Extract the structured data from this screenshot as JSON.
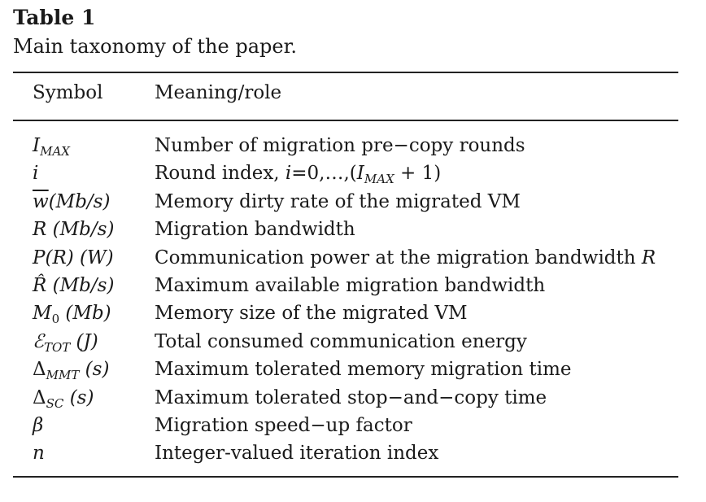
{
  "caption": {
    "label": "Table 1",
    "text": "Main taxonomy of the paper."
  },
  "header": {
    "symbol": "Symbol",
    "meaning": "Meaning/role"
  },
  "rows": [
    {
      "symbol": {
        "main": "I",
        "sub": "MAX",
        "rest": ""
      },
      "meaning": "Number of migration pre−copy rounds"
    },
    {
      "symbol": {
        "main": "i",
        "sub": "",
        "rest": ""
      },
      "meaning": {
        "pre": "Round index, ",
        "var": "i",
        "eq": "=0,…,(",
        "var2": "I",
        "sub": "MAX",
        "post": " + 1)"
      }
    },
    {
      "symbol": {
        "main": "w",
        "sub": "",
        "rest": "(Mb/s)"
      },
      "meaning": "Memory dirty rate of the migrated VM"
    },
    {
      "symbol": {
        "main": "R",
        "sub": "",
        "rest": " (Mb/s)"
      },
      "meaning": "Migration bandwidth"
    },
    {
      "symbol": {
        "main": "P(R)",
        "sub": "",
        "rest": " (W)"
      },
      "meaning": {
        "text": "Communication power at the migration bandwidth ",
        "var": "R"
      }
    },
    {
      "symbol": {
        "main": "R̂",
        "sub": "",
        "rest": " (Mb/s)"
      },
      "meaning": "Maximum available migration bandwidth"
    },
    {
      "symbol": {
        "main": "M",
        "sub": "0",
        "rest": " (Mb)"
      },
      "meaning": "Memory size of the migrated VM"
    },
    {
      "symbol": {
        "main": "ℰ",
        "sub": "TOT",
        "rest": " (J)"
      },
      "meaning": "Total consumed communication energy"
    },
    {
      "symbol": {
        "main": "Δ",
        "sub": "MMT",
        "rest": " (s)"
      },
      "meaning": "Maximum tolerated memory migration time"
    },
    {
      "symbol": {
        "main": "Δ",
        "sub": "SC",
        "rest": " (s)"
      },
      "meaning": "Maximum tolerated stop−and−copy time"
    },
    {
      "symbol": {
        "main": "β",
        "sub": "",
        "rest": ""
      },
      "meaning": "Migration speed−up factor"
    },
    {
      "symbol": {
        "main": "n",
        "sub": "",
        "rest": ""
      },
      "meaning": "Integer-valued iteration index"
    }
  ]
}
